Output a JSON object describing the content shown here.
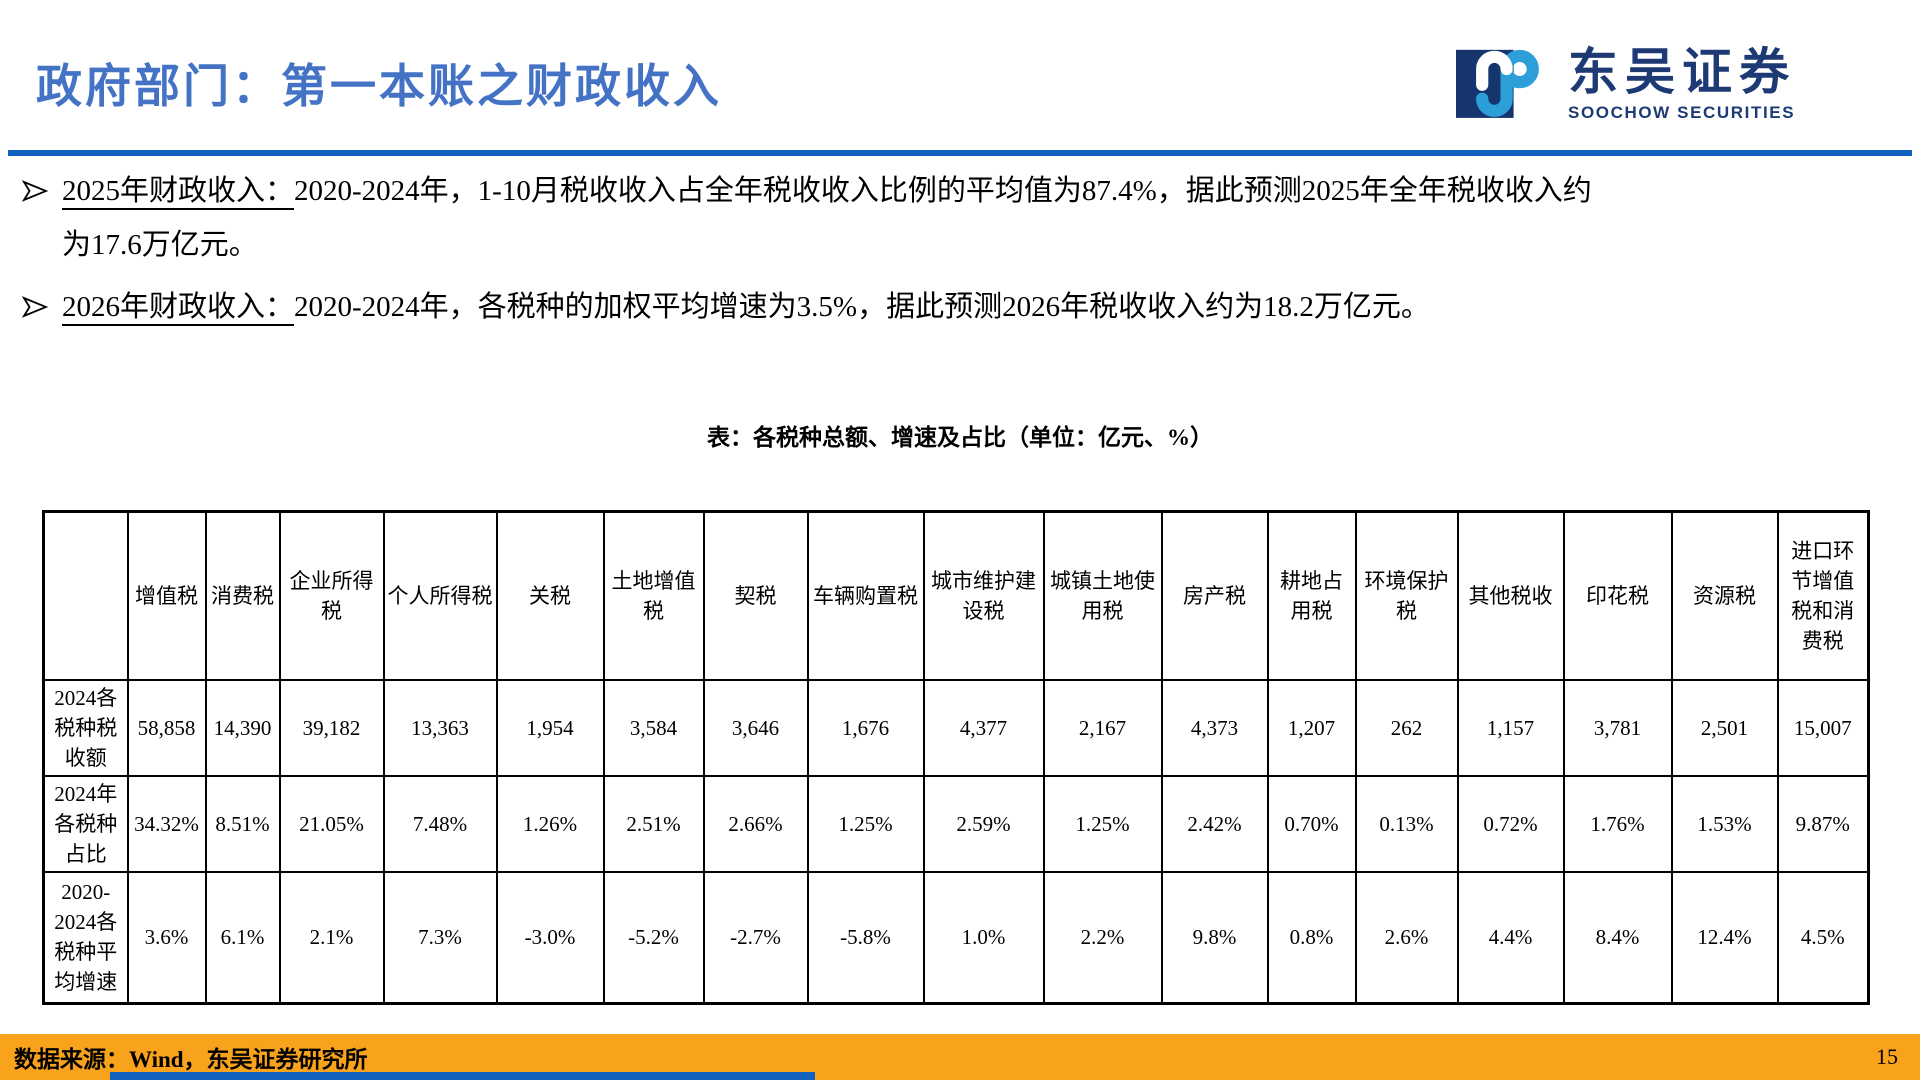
{
  "header": {
    "title": "政府部门：第一本账之财政收入",
    "logo": {
      "cn_name": "东吴证券",
      "en_name": "SOOCHOW SECURITIES",
      "icon": "soochow-s-mark-icon",
      "navy": "#1E3A74",
      "light_blue": "#2D9FD8"
    },
    "rule_color": "#1261BE"
  },
  "bullets": [
    {
      "icon": "arrowhead-right-icon",
      "lead": "2025年财政收入：",
      "text": "2020-2024年，1-10月税收收入占全年税收收入比例的平均值为87.4%，据此预测2025年全年税收收入约为17.6万亿元。"
    },
    {
      "icon": "arrowhead-right-icon",
      "lead": "2026年财政收入：",
      "text": "2020-2024年，各税种的加权平均增速为3.5%，据此预测2026年税收收入约为18.2万亿元。"
    }
  ],
  "table": {
    "title": "表：各税种总额、增速及占比（单位：亿元、%）",
    "columns": [
      "",
      "增值税",
      "消费税",
      "企业所得税",
      "个人所得税",
      "关税",
      "土地增值税",
      "契税",
      "车辆购置税",
      "城市维护建设税",
      "城镇土地使用税",
      "房产税",
      "耕地占用税",
      "环境保护税",
      "其他税收",
      "印花税",
      "资源税",
      "进口环节增值税和消费税"
    ],
    "rows": [
      {
        "label": "2024各税种税收额",
        "values": [
          "58,858",
          "14,390",
          "39,182",
          "13,363",
          "1,954",
          "3,584",
          "3,646",
          "1,676",
          "4,377",
          "2,167",
          "4,373",
          "1,207",
          "262",
          "1,157",
          "3,781",
          "2,501",
          "15,007"
        ]
      },
      {
        "label": "2024年各税种占比",
        "values": [
          "34.32%",
          "8.51%",
          "21.05%",
          "7.48%",
          "1.26%",
          "2.51%",
          "2.66%",
          "1.25%",
          "2.59%",
          "1.25%",
          "2.42%",
          "0.70%",
          "0.13%",
          "0.72%",
          "1.76%",
          "1.53%",
          "9.87%"
        ]
      },
      {
        "label": "2020-2024各税种平均增速",
        "values": [
          "3.6%",
          "6.1%",
          "2.1%",
          "7.3%",
          "-3.0%",
          "-5.2%",
          "-2.7%",
          "-5.8%",
          "1.0%",
          "2.2%",
          "9.8%",
          "0.8%",
          "2.6%",
          "4.4%",
          "8.4%",
          "12.4%",
          "4.5%"
        ]
      }
    ]
  },
  "footer": {
    "source": "数据来源：Wind，东吴证券研究所",
    "page_number": "15",
    "bar_color": "#F9A21B"
  }
}
